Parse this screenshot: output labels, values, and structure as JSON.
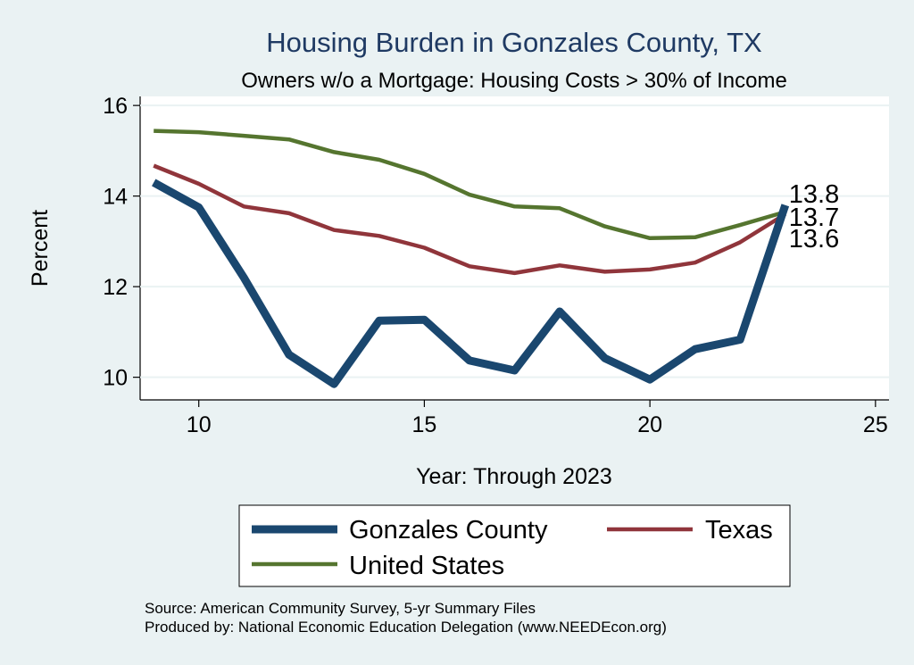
{
  "chart_data": {
    "type": "line",
    "title": "Housing Burden in Gonzales County, TX",
    "subtitle": "Owners w/o a Mortgage: Housing Costs > 30% of Income",
    "xlabel": "Year: Through 2023",
    "ylabel": "Percent",
    "xlim": [
      8.7,
      25.3
    ],
    "ylim": [
      9.5,
      16.2
    ],
    "xticks": [
      10,
      15,
      20,
      25
    ],
    "yticks": [
      10,
      12,
      14,
      16
    ],
    "grid": true,
    "legend_position": "bottom",
    "x": [
      9,
      10,
      11,
      12,
      13,
      14,
      15,
      16,
      17,
      18,
      19,
      20,
      21,
      22,
      23
    ],
    "series": [
      {
        "name": "Gonzales County",
        "color": "#1a476f",
        "values": [
          14.3,
          13.75,
          12.2,
          10.5,
          9.85,
          11.25,
          11.27,
          10.37,
          10.15,
          11.45,
          10.42,
          9.95,
          10.62,
          10.83,
          13.8
        ],
        "end_label": "13.8"
      },
      {
        "name": "Texas",
        "color": "#90353b",
        "values": [
          14.67,
          14.27,
          13.77,
          13.62,
          13.25,
          13.12,
          12.86,
          12.45,
          12.3,
          12.47,
          12.33,
          12.38,
          12.53,
          12.98,
          13.6
        ],
        "end_label": "13.6"
      },
      {
        "name": "United States",
        "color": "#55752f",
        "values": [
          15.44,
          15.41,
          15.33,
          15.25,
          14.97,
          14.8,
          14.49,
          14.03,
          13.77,
          13.73,
          13.33,
          13.07,
          13.09,
          13.36,
          13.65
        ],
        "end_label": "13.7"
      }
    ]
  },
  "notes": {
    "source": "Source: American Community Survey, 5-yr Summary Files",
    "produced_by": "Produced by: National Economic Education Delegation (www.NEEDEcon.org)"
  }
}
